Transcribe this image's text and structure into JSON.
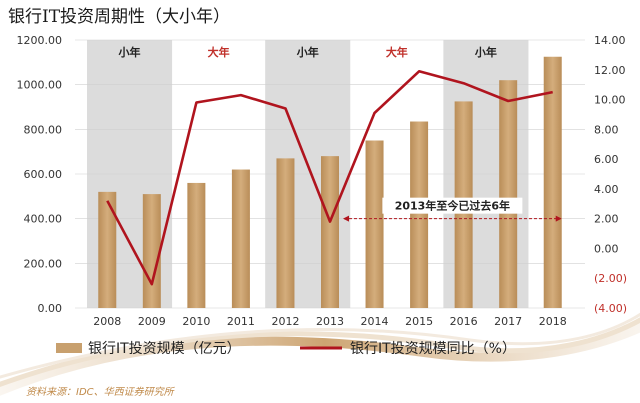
{
  "chart_data": {
    "type": "bar+line",
    "title": "银行IT投资周期性（大小年）",
    "categories": [
      "2008",
      "2009",
      "2010",
      "2011",
      "2012",
      "2013",
      "2014",
      "2015",
      "2016",
      "2017",
      "2018"
    ],
    "series": [
      {
        "name": "银行IT投资规模（亿元）",
        "type": "bar",
        "axis": "left",
        "color": "#c8a06e",
        "values": [
          520,
          510,
          560,
          620,
          670,
          680,
          750,
          835,
          925,
          1020,
          1125
        ]
      },
      {
        "name": "银行IT投资规模同比（%）",
        "type": "line",
        "axis": "right",
        "color": "#b0141e",
        "values": [
          3.2,
          -2.4,
          9.8,
          10.3,
          9.4,
          1.8,
          9.1,
          11.9,
          11.1,
          9.9,
          10.5
        ]
      }
    ],
    "y_left": {
      "min": 0,
      "max": 1200,
      "ticks": [
        0,
        200,
        400,
        600,
        800,
        1000,
        1200
      ],
      "tick_labels": [
        "0.00",
        "200.00",
        "400.00",
        "600.00",
        "800.00",
        "1000.00",
        "1200.00"
      ]
    },
    "y_right": {
      "min": -4,
      "max": 14,
      "ticks": [
        -4,
        -2,
        0,
        2,
        4,
        6,
        8,
        10,
        12,
        14
      ],
      "tick_labels": [
        "(4.00)",
        "(2.00)",
        "0.00",
        "2.00",
        "4.00",
        "6.00",
        "8.00",
        "10.00",
        "12.00",
        "14.00"
      ],
      "negative_color": "#c0302a"
    },
    "bands": [
      {
        "label": "小年",
        "from": "2008",
        "to": "2009",
        "label_color": "#222222",
        "shaded": true
      },
      {
        "label": "大年",
        "from": "2010",
        "to": "2011",
        "label_color": "#c0302a",
        "shaded": false
      },
      {
        "label": "小年",
        "from": "2012",
        "to": "2013",
        "label_color": "#222222",
        "shaded": true
      },
      {
        "label": "大年",
        "from": "2014",
        "to": "2015",
        "label_color": "#c0302a",
        "shaded": false
      },
      {
        "label": "小年",
        "from": "2016",
        "to": "2017",
        "label_color": "#222222",
        "shaded": true
      }
    ],
    "annotation": {
      "text": "2013年至今已过去6年",
      "from": "2013",
      "to": "2018"
    },
    "colors": {
      "band": "#dcdcdc",
      "grid": "#d0d0d0",
      "accent": "#b0141e"
    }
  },
  "legend": {
    "bar_label": "银行IT投资规模（亿元）",
    "line_label": "银行IT投资规模同比（%）"
  },
  "source": "资料来源：IDC、华西证券研究所"
}
